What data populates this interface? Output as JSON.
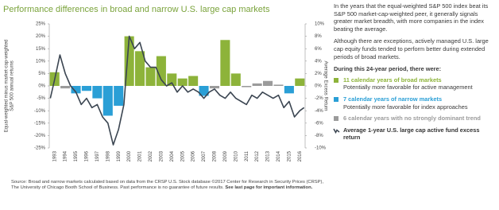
{
  "chart_data": {
    "type": "bar",
    "title": "Performance differences in broad and narrow U.S. large cap markets",
    "y_label": [
      "Equal-weighted minus market-cap-weighted",
      "S&P 500 annual returns"
    ],
    "y2_label": "Average Excess Return",
    "categories": [
      "1993",
      "1994",
      "1995",
      "1996",
      "1997",
      "1998",
      "1999",
      "2000",
      "2001",
      "2002",
      "2003",
      "2004",
      "2005",
      "2006",
      "2007",
      "2008",
      "2009",
      "2010",
      "2011",
      "2012",
      "2013",
      "2014",
      "2015",
      "2016"
    ],
    "xlim": [
      1992.5,
      2016.5
    ],
    "ylim": [
      -25,
      25
    ],
    "yticks": [
      {
        "value": 25,
        "label": "25%"
      },
      {
        "value": 20,
        "label": "20%"
      },
      {
        "value": 15,
        "label": "15%"
      },
      {
        "value": 10,
        "label": "10%"
      },
      {
        "value": 5,
        "label": "5%"
      },
      {
        "value": 0,
        "label": "0%"
      },
      {
        "value": -5,
        "label": "-5%"
      },
      {
        "value": -10,
        "label": "-10%"
      },
      {
        "value": -15,
        "label": "-15%"
      },
      {
        "value": -20,
        "label": "-20%"
      },
      {
        "value": -25,
        "label": "-25%"
      }
    ],
    "y2lim": [
      -10,
      10
    ],
    "y2ticks": [
      {
        "value": 10,
        "label": "10%"
      },
      {
        "value": 8,
        "label": "8%"
      },
      {
        "value": 6,
        "label": "6%"
      },
      {
        "value": 4,
        "label": "4%"
      },
      {
        "value": 2,
        "label": "2%"
      },
      {
        "value": 0,
        "label": "0%"
      },
      {
        "value": -2,
        "label": "-2%"
      },
      {
        "value": -4,
        "label": "-4%"
      },
      {
        "value": -6,
        "label": "-6%"
      },
      {
        "value": -8,
        "label": "-8%"
      },
      {
        "value": -10,
        "label": "-10%"
      }
    ],
    "series": [
      {
        "name": "11 calendar years of broad markets",
        "description": "Potentially more favorable for active management",
        "color": "#8db33a",
        "values": [
          5.5,
          null,
          null,
          null,
          null,
          null,
          null,
          20,
          14,
          7.5,
          12,
          5,
          3,
          4,
          null,
          null,
          18.5,
          5,
          null,
          null,
          null,
          null,
          null,
          3
        ]
      },
      {
        "name": "7 calendar years of narrow markets",
        "description": "Potentially more favorable for index approaches",
        "color": "#2a9fd6",
        "values": [
          null,
          null,
          -3,
          -2,
          -5,
          -12,
          -8,
          null,
          null,
          null,
          null,
          null,
          null,
          null,
          -4,
          null,
          null,
          null,
          null,
          null,
          null,
          null,
          -3,
          null
        ]
      },
      {
        "name": "6 calendar years with no strongly dominant trend",
        "color": "#9b9b9b",
        "values": [
          null,
          -1,
          null,
          null,
          null,
          null,
          null,
          null,
          null,
          null,
          null,
          null,
          null,
          null,
          null,
          -1,
          null,
          null,
          -0.5,
          1,
          2,
          0.5,
          null,
          null
        ]
      },
      {
        "name": "Average 1-year U.S. large cap active fund excess return",
        "type": "line",
        "axis": "y2",
        "color": "#3b4551",
        "x": [
          1992.6,
          1993,
          1993.5,
          1994,
          1994.5,
          1995,
          1995.5,
          1996,
          1996.5,
          1997,
          1997.5,
          1998,
          1998.5,
          1999,
          1999.5,
          2000,
          2000.5,
          2001,
          2001.5,
          2002,
          2002.5,
          2003,
          2003.5,
          2004,
          2004.5,
          2005,
          2005.5,
          2006,
          2006.5,
          2007,
          2007.5,
          2008,
          2008.5,
          2009,
          2009.5,
          2010,
          2010.5,
          2011,
          2011.5,
          2012,
          2012.5,
          2013,
          2013.5,
          2014,
          2014.5,
          2015,
          2015.5,
          2016,
          2016.4
        ],
        "values": [
          -2,
          1,
          5,
          2,
          0,
          -1,
          -3,
          -2,
          -3.5,
          -3,
          -5,
          -6,
          -9.5,
          -7,
          -3,
          8,
          6,
          7,
          4,
          3,
          3,
          1,
          0,
          0.5,
          -1,
          0,
          -1,
          -0.5,
          -1,
          -2,
          -1,
          -0.5,
          -1.5,
          -2,
          -1,
          -2,
          -2.5,
          -3,
          -1.5,
          -2,
          -1,
          -1.5,
          -2,
          -1.5,
          -3.5,
          -2.5,
          -5,
          -4,
          -3.5
        ]
      }
    ]
  },
  "panel": {
    "paragraphs": [
      "In the years that the equal-weighted S&P 500 index beat its S&P 500 market-cap-weighted peer, it generally signals greater market breadth, with more companies in the index beating the average.",
      "Although there are exceptions, actively managed U.S. large cap equity funds tended to perform better during extended periods of broad markets."
    ],
    "heading": "During this 24-year period, there were:"
  },
  "source": {
    "text": "Source: Broad and narrow markets calculated based on data from the CRSP U.S. Stock database ©2017 Center for Research in Security Prices (CRSP), The University of Chicago Booth School of Business. Past performance is no guarantee of future results.",
    "bold": "See last page for important information."
  }
}
